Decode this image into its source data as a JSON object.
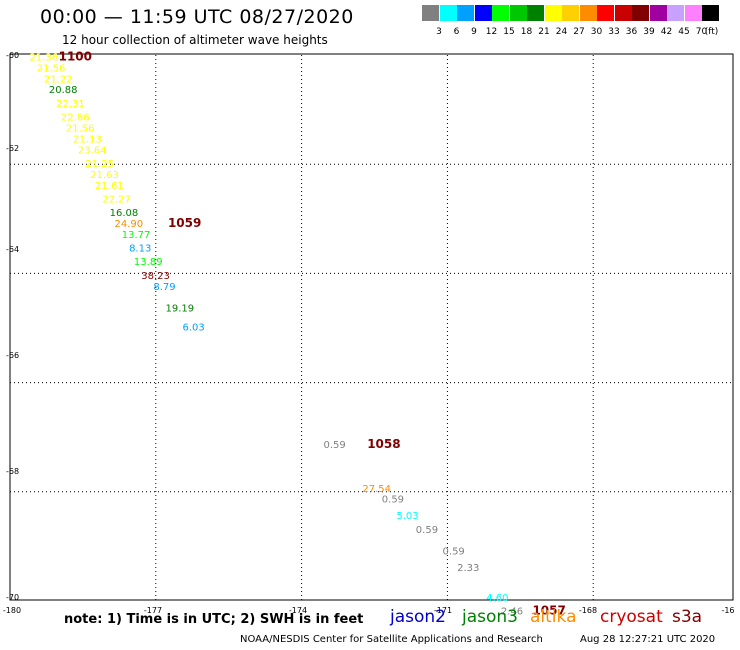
{
  "header": {
    "title": "00:00 — 11:59 UTC 08/27/2020",
    "subtitle": "12 hour collection of altimeter wave heights"
  },
  "colorbar": {
    "unit": "(ft)",
    "items": [
      {
        "color": "#808080",
        "label": "3"
      },
      {
        "color": "#00ffff",
        "label": "6"
      },
      {
        "color": "#00a0ff",
        "label": "9"
      },
      {
        "color": "#0000ff",
        "label": "12"
      },
      {
        "color": "#00ff00",
        "label": "15"
      },
      {
        "color": "#00c800",
        "label": "18"
      },
      {
        "color": "#008000",
        "label": "21"
      },
      {
        "color": "#ffff00",
        "label": "24"
      },
      {
        "color": "#ffd000",
        "label": "27"
      },
      {
        "color": "#ff8c00",
        "label": "30"
      },
      {
        "color": "#ff0000",
        "label": "33"
      },
      {
        "color": "#c80000",
        "label": "36"
      },
      {
        "color": "#800000",
        "label": "39"
      },
      {
        "color": "#a000a0",
        "label": "42"
      },
      {
        "color": "#c8a0ff",
        "label": "45"
      },
      {
        "color": "#ff80ff",
        "label": "70"
      },
      {
        "color": "#000000",
        "label": ""
      }
    ]
  },
  "map_axes": {
    "lon_ticks": [
      "-180",
      "-177",
      "-174",
      "-171",
      "-168",
      "-16"
    ],
    "lat_ticks": [
      "-60",
      "-62",
      "-64",
      "-66",
      "-68",
      "-70"
    ]
  },
  "chart_data": {
    "type": "scatter",
    "series": [
      {
        "name": "observations",
        "points": [
          {
            "lon": -179.6,
            "lat": -60.1,
            "value": "21.36",
            "color": "#ffff00"
          },
          {
            "lon": -179.45,
            "lat": -60.3,
            "value": "21.56",
            "color": "#ffff00"
          },
          {
            "lon": -179.3,
            "lat": -60.5,
            "value": "21.22",
            "color": "#ffff00"
          },
          {
            "lon": -179.2,
            "lat": -60.7,
            "value": "20.88",
            "color": "#008000"
          },
          {
            "lon": -179.05,
            "lat": -60.95,
            "value": "22.31",
            "color": "#ffff00"
          },
          {
            "lon": -178.95,
            "lat": -61.2,
            "value": "22.86",
            "color": "#ffff00"
          },
          {
            "lon": -178.85,
            "lat": -61.4,
            "value": "21.56",
            "color": "#ffff00"
          },
          {
            "lon": -178.7,
            "lat": -61.6,
            "value": "21.13",
            "color": "#ffff00"
          },
          {
            "lon": -178.6,
            "lat": -61.8,
            "value": "23.64",
            "color": "#ffff00"
          },
          {
            "lon": -178.45,
            "lat": -62.05,
            "value": "21.25",
            "color": "#ffff00"
          },
          {
            "lon": -178.35,
            "lat": -62.25,
            "value": "21.63",
            "color": "#ffff00"
          },
          {
            "lon": -178.25,
            "lat": -62.45,
            "value": "21.61",
            "color": "#ffff00"
          },
          {
            "lon": -178.1,
            "lat": -62.7,
            "value": "22.27",
            "color": "#ffff00"
          },
          {
            "lon": -177.95,
            "lat": -62.95,
            "value": "16.08",
            "color": "#008000"
          },
          {
            "lon": -177.85,
            "lat": -63.15,
            "value": "24.90",
            "color": "#ff8c00"
          },
          {
            "lon": -177.7,
            "lat": -63.35,
            "value": "13.77",
            "color": "#00ff00"
          },
          {
            "lon": -177.55,
            "lat": -63.6,
            "value": "8.13",
            "color": "#00a0ff"
          },
          {
            "lon": -177.45,
            "lat": -63.85,
            "value": "13.89",
            "color": "#00ff00"
          },
          {
            "lon": -177.3,
            "lat": -64.1,
            "value": "38.23",
            "color": "#800000"
          },
          {
            "lon": -177.05,
            "lat": -64.3,
            "value": "8.79",
            "color": "#00a0ff"
          },
          {
            "lon": -176.8,
            "lat": -64.7,
            "value": "19.19",
            "color": "#008000"
          },
          {
            "lon": -176.45,
            "lat": -65.05,
            "value": "6.03",
            "color": "#00a0ff"
          },
          {
            "lon": -173.55,
            "lat": -67.2,
            "value": "0.59",
            "color": "#808080"
          },
          {
            "lon": -172.75,
            "lat": -68.0,
            "value": "27.54",
            "color": "#ff8c00"
          },
          {
            "lon": -172.35,
            "lat": -68.2,
            "value": "0.59",
            "color": "#808080"
          },
          {
            "lon": -172.05,
            "lat": -68.5,
            "value": "5.03",
            "color": "#00ffff"
          },
          {
            "lon": -171.65,
            "lat": -68.75,
            "value": "0.59",
            "color": "#808080"
          },
          {
            "lon": -171.1,
            "lat": -69.15,
            "value": "0.59",
            "color": "#808080"
          },
          {
            "lon": -170.8,
            "lat": -69.45,
            "value": "2.33",
            "color": "#808080"
          },
          {
            "lon": -170.2,
            "lat": -70.0,
            "value": "4.60",
            "color": "#00ffff"
          },
          {
            "lon": -169.9,
            "lat": -70.25,
            "value": "2.46",
            "color": "#808080"
          }
        ]
      },
      {
        "name": "time_markers",
        "points": [
          {
            "lon": -179.0,
            "lat": -60.1,
            "value": "1100",
            "color": "#800000"
          },
          {
            "lon": -176.75,
            "lat": -63.15,
            "value": "1059",
            "color": "#800000"
          },
          {
            "lon": -172.65,
            "lat": -67.2,
            "value": "1058",
            "color": "#800000"
          },
          {
            "lon": -169.25,
            "lat": -70.25,
            "value": "1057",
            "color": "#800000"
          }
        ]
      }
    ]
  },
  "footer": {
    "note": "note: 1) Time is in UTC; 2) SWH is in feet",
    "legend": [
      {
        "label": "jason2",
        "color": "#0000cc"
      },
      {
        "label": "jason3",
        "color": "#008000"
      },
      {
        "label": "altika",
        "color": "#ff8c00"
      },
      {
        "label": "cryosat",
        "color": "#cc0000"
      },
      {
        "label": "s3a",
        "color": "#800000"
      }
    ],
    "credit": "NOAA/NESDIS Center for Satellite Applications and Research",
    "timestamp": "Aug 28 12:27:21 UTC 2020"
  }
}
